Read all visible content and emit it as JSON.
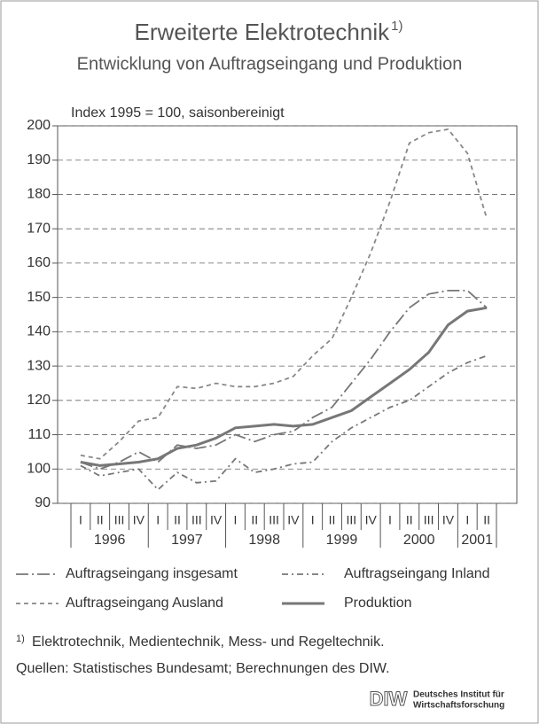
{
  "chart_data": {
    "type": "line",
    "title": "Erweiterte Elektrotechnik",
    "title_note": "1)",
    "subtitle": "Entwicklung von Auftragseingang und Produktion",
    "y_axis_label": "Index 1995 = 100, saisonbereinigt",
    "categories": [
      "I",
      "II",
      "III",
      "IV",
      "I",
      "II",
      "III",
      "IV",
      "I",
      "II",
      "III",
      "IV",
      "I",
      "II",
      "III",
      "IV",
      "I",
      "II",
      "III",
      "IV",
      "I",
      "II"
    ],
    "year_labels": [
      "1996",
      "1997",
      "1998",
      "1999",
      "2000",
      "2001"
    ],
    "ylim": [
      90,
      200
    ],
    "yticks": [
      90,
      100,
      110,
      120,
      130,
      140,
      150,
      160,
      170,
      180,
      190,
      200
    ],
    "grid": true,
    "series": [
      {
        "name": "Auftragseingang insgesamt",
        "color": "#777777",
        "style": "dash-dot-long",
        "values": [
          102,
          100,
          102,
          105,
          102,
          107,
          106,
          107,
          110,
          108,
          110,
          111,
          115,
          118,
          125,
          132,
          140,
          147,
          151,
          152,
          152,
          147
        ]
      },
      {
        "name": "Auftragseingang Inland",
        "color": "#777777",
        "style": "dash-dot",
        "values": [
          101,
          98,
          99,
          100,
          94,
          99,
          96,
          96.5,
          103,
          99,
          100,
          101.5,
          102,
          108,
          112,
          115,
          118,
          120,
          124,
          128,
          131,
          133
        ]
      },
      {
        "name": "Auftragseingang Ausland",
        "color": "#888888",
        "style": "dashed",
        "values": [
          104,
          103,
          108,
          114,
          115,
          124,
          123.5,
          125,
          124,
          124,
          125,
          127,
          133,
          138,
          150,
          163,
          178,
          195,
          198,
          199,
          192,
          173
        ]
      },
      {
        "name": "Produktion",
        "color": "#777777",
        "style": "solid",
        "values": [
          102,
          101,
          101.5,
          102,
          103,
          106,
          107,
          109,
          112,
          112.5,
          113,
          112.5,
          113,
          115,
          117,
          121,
          125,
          129,
          134,
          142,
          146,
          147
        ]
      }
    ],
    "footnote_mark": "1)",
    "footnote": "Elektrotechnik, Medientechnik, Mess- und Regeltechnik.",
    "source": "Quellen: Statistisches Bundesamt; Berechnungen des DIW.",
    "logo": "DIW",
    "logo_line1": "Deutsches Institut für",
    "logo_line2": "Wirtschaftsforschung"
  }
}
